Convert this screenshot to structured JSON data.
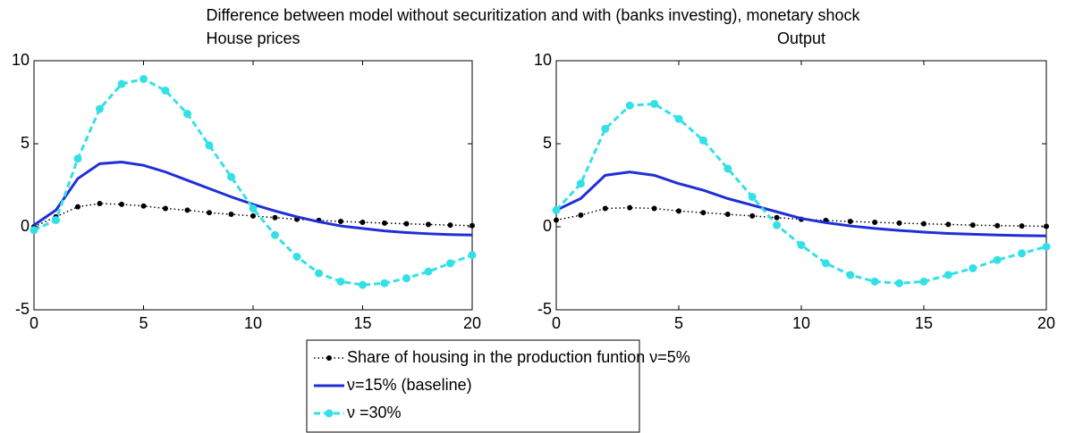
{
  "title": "Difference between model without securitization and with (banks investing), monetary shock",
  "chart_data": [
    {
      "type": "line",
      "title": "House prices",
      "legend": "below",
      "x": [
        0,
        1,
        2,
        3,
        4,
        5,
        6,
        7,
        8,
        9,
        10,
        11,
        12,
        13,
        14,
        15,
        16,
        17,
        18,
        19,
        20
      ],
      "xlim": [
        0,
        20
      ],
      "xticks": [
        0,
        5,
        10,
        15,
        20
      ],
      "ylim": [
        -5,
        10
      ],
      "yticks": [
        -5,
        0,
        5,
        10
      ],
      "series": [
        {
          "name": "Share of housing in the production funtion ν=5%",
          "color": "#000000",
          "style": "dotted",
          "marker": true,
          "values": [
            0.0,
            0.6,
            1.2,
            1.4,
            1.35,
            1.25,
            1.1,
            1.0,
            0.85,
            0.75,
            0.65,
            0.55,
            0.45,
            0.38,
            0.32,
            0.27,
            0.22,
            0.18,
            0.14,
            0.1,
            0.07
          ]
        },
        {
          "name": "ν=15% (baseline)",
          "color": "#1f2fd6",
          "style": "solid",
          "marker": false,
          "values": [
            0.1,
            1.0,
            2.9,
            3.8,
            3.9,
            3.7,
            3.3,
            2.8,
            2.3,
            1.8,
            1.35,
            0.95,
            0.6,
            0.3,
            0.05,
            -0.1,
            -0.25,
            -0.35,
            -0.42,
            -0.47,
            -0.5
          ]
        },
        {
          "name": "ν =30%",
          "color": "#33e0e6",
          "style": "dashed",
          "marker": true,
          "values": [
            -0.2,
            0.4,
            4.1,
            7.1,
            8.6,
            8.9,
            8.2,
            6.8,
            4.9,
            3.0,
            1.1,
            -0.5,
            -1.8,
            -2.8,
            -3.3,
            -3.5,
            -3.4,
            -3.1,
            -2.7,
            -2.2,
            -1.7
          ]
        }
      ]
    },
    {
      "type": "line",
      "title": "Output",
      "x": [
        0,
        1,
        2,
        3,
        4,
        5,
        6,
        7,
        8,
        9,
        10,
        11,
        12,
        13,
        14,
        15,
        16,
        17,
        18,
        19,
        20
      ],
      "xlim": [
        0,
        20
      ],
      "xticks": [
        0,
        5,
        10,
        15,
        20
      ],
      "ylim": [
        -5,
        10
      ],
      "yticks": [
        -5,
        0,
        5,
        10
      ],
      "series": [
        {
          "name": "Share of housing in the production funtion ν=5%",
          "color": "#000000",
          "style": "dotted",
          "marker": true,
          "values": [
            0.4,
            0.7,
            1.1,
            1.15,
            1.1,
            0.95,
            0.85,
            0.75,
            0.65,
            0.55,
            0.45,
            0.38,
            0.32,
            0.27,
            0.22,
            0.18,
            0.14,
            0.1,
            0.07,
            0.05,
            0.03
          ]
        },
        {
          "name": "ν=15% (baseline)",
          "color": "#1f2fd6",
          "style": "solid",
          "marker": false,
          "values": [
            1.0,
            1.7,
            3.1,
            3.3,
            3.1,
            2.6,
            2.2,
            1.7,
            1.3,
            0.9,
            0.5,
            0.25,
            0.05,
            -0.1,
            -0.22,
            -0.32,
            -0.4,
            -0.45,
            -0.5,
            -0.53,
            -0.55
          ]
        },
        {
          "name": "ν =30%",
          "color": "#33e0e6",
          "style": "dashed",
          "marker": true,
          "values": [
            1.0,
            2.6,
            5.9,
            7.3,
            7.4,
            6.5,
            5.2,
            3.5,
            1.8,
            0.1,
            -1.1,
            -2.2,
            -2.9,
            -3.3,
            -3.4,
            -3.3,
            -2.9,
            -2.5,
            -2.0,
            -1.6,
            -1.2
          ]
        }
      ]
    }
  ]
}
